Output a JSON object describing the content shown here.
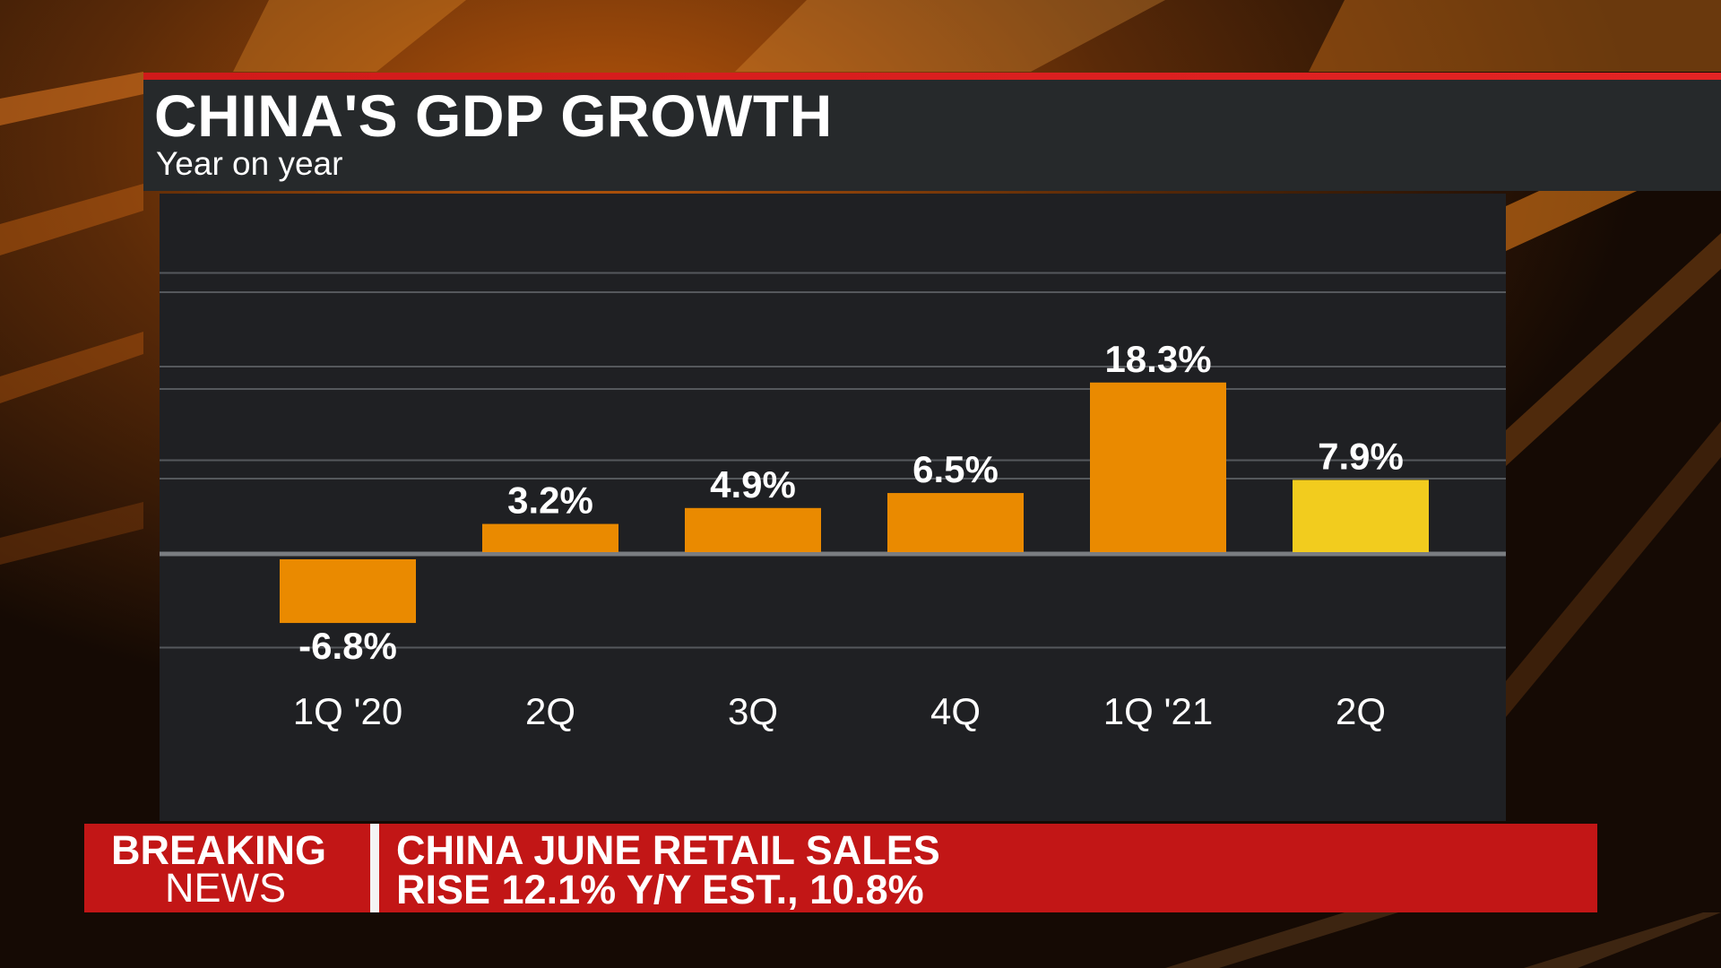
{
  "header": {
    "title": "CHINA'S GDP GROWTH",
    "subtitle": "Year on year"
  },
  "chart_data": {
    "type": "bar",
    "title": "CHINA'S GDP GROWTH",
    "subtitle": "Year on year",
    "categories": [
      "1Q '20",
      "2Q",
      "3Q",
      "4Q",
      "1Q '21",
      "2Q"
    ],
    "values": [
      -6.8,
      3.2,
      4.9,
      6.5,
      18.3,
      7.9
    ],
    "value_labels": [
      "-6.8%",
      "3.2%",
      "4.9%",
      "6.5%",
      "18.3%",
      "7.9%"
    ],
    "ylim": [
      -10,
      20
    ],
    "grid": true,
    "legend": "none",
    "colors": {
      "bar": "#ea8a00",
      "highlight_bar": "#f2cc1e",
      "grid": "#55585c",
      "zero_line": "#7a7d81",
      "label": "#ffffff"
    },
    "highlight_index": 5
  },
  "ticker": {
    "badge_line1": "BREAKING",
    "badge_line2": "NEWS",
    "headline_line1": "CHINA JUNE RETAIL SALES",
    "headline_line2": "RISE 12.1% Y/Y EST., 10.8%"
  }
}
